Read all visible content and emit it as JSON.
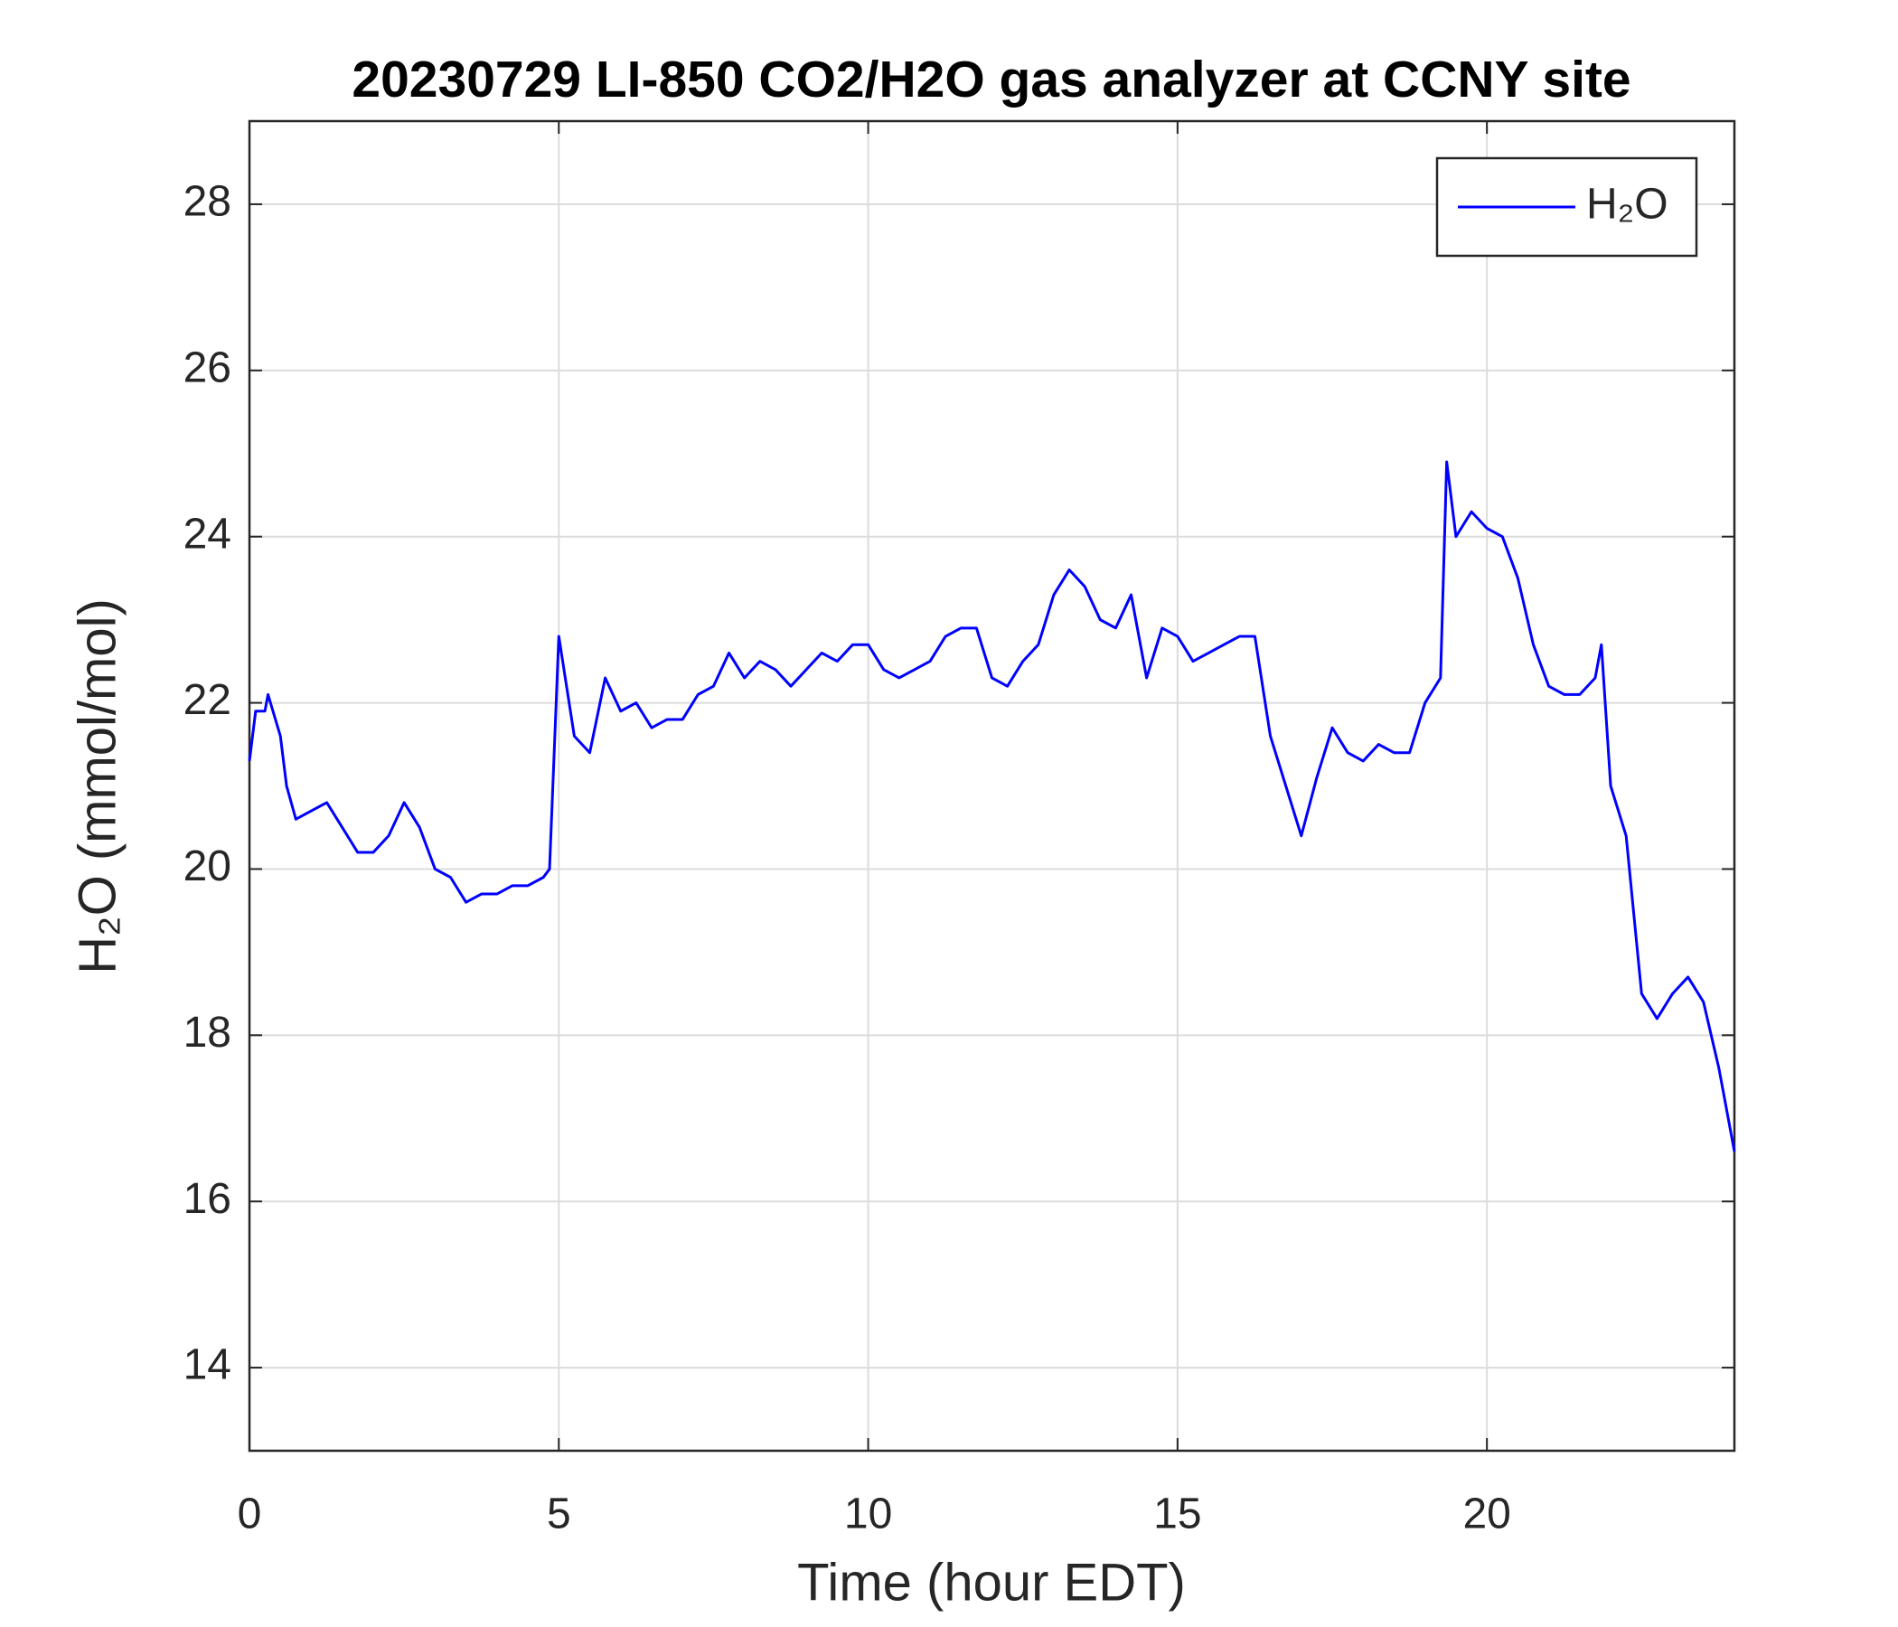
{
  "chart_data": {
    "type": "line",
    "title": "20230729 LI-850 CO2/H2O gas analyzer at CCNY site",
    "x_label": "Time (hour EDT)",
    "y_label": "H₂O (mmol/mol)",
    "xlim": [
      0,
      24
    ],
    "xticks": [
      0,
      5,
      10,
      15,
      20
    ],
    "ylim": [
      13,
      29
    ],
    "yticks": [
      14,
      16,
      18,
      20,
      22,
      24,
      26,
      28
    ],
    "grid": true,
    "legend": "top-right",
    "x": [
      0,
      0.1,
      0.25,
      0.3,
      0.5,
      0.6,
      0.75,
      1.0,
      1.25,
      1.5,
      1.75,
      2.0,
      2.25,
      2.5,
      2.75,
      3.0,
      3.25,
      3.5,
      3.75,
      4.0,
      4.25,
      4.5,
      4.75,
      4.85,
      5.0,
      5.25,
      5.5,
      5.75,
      6.0,
      6.25,
      6.5,
      6.75,
      7.0,
      7.25,
      7.5,
      7.75,
      8.0,
      8.25,
      8.5,
      8.75,
      9.0,
      9.25,
      9.5,
      9.75,
      10.0,
      10.25,
      10.5,
      10.75,
      11.0,
      11.25,
      11.5,
      11.75,
      12.0,
      12.25,
      12.5,
      12.75,
      13.0,
      13.25,
      13.5,
      13.75,
      14.0,
      14.25,
      14.5,
      14.75,
      15.0,
      15.25,
      15.5,
      15.75,
      16.0,
      16.25,
      16.5,
      16.75,
      17.0,
      17.25,
      17.5,
      17.75,
      18.0,
      18.25,
      18.5,
      18.75,
      19.0,
      19.25,
      19.35,
      19.5,
      19.75,
      20.0,
      20.25,
      20.5,
      20.75,
      21.0,
      21.25,
      21.5,
      21.75,
      21.85,
      22.0,
      22.25,
      22.5,
      22.75,
      23.0,
      23.25,
      23.5,
      23.75,
      24.0
    ],
    "series": [
      {
        "name": "H₂O",
        "color": "#0000ff",
        "values": [
          21.3,
          21.9,
          21.9,
          22.1,
          21.6,
          21.0,
          20.6,
          20.7,
          20.8,
          20.5,
          20.2,
          20.2,
          20.4,
          20.8,
          20.5,
          20.0,
          19.9,
          19.6,
          19.7,
          19.7,
          19.8,
          19.8,
          19.9,
          20.0,
          22.8,
          21.6,
          21.4,
          22.3,
          21.9,
          22.0,
          21.7,
          21.8,
          21.8,
          22.1,
          22.2,
          22.6,
          22.3,
          22.5,
          22.4,
          22.2,
          22.4,
          22.6,
          22.5,
          22.7,
          22.7,
          22.4,
          22.3,
          22.4,
          22.5,
          22.8,
          22.9,
          22.9,
          22.3,
          22.2,
          22.5,
          22.7,
          23.3,
          23.6,
          23.4,
          23.0,
          22.9,
          23.3,
          22.3,
          22.9,
          22.8,
          22.5,
          22.6,
          22.7,
          22.8,
          22.8,
          21.6,
          21.0,
          20.4,
          21.1,
          21.7,
          21.4,
          21.3,
          21.5,
          21.4,
          21.4,
          22.0,
          22.3,
          24.9,
          24.0,
          24.3,
          24.1,
          24.0,
          23.5,
          22.7,
          22.2,
          22.1,
          22.1,
          22.3,
          22.7,
          21.0,
          20.4,
          18.5,
          18.2,
          18.5,
          18.7,
          18.4,
          17.6,
          16.6
        ]
      }
    ]
  }
}
